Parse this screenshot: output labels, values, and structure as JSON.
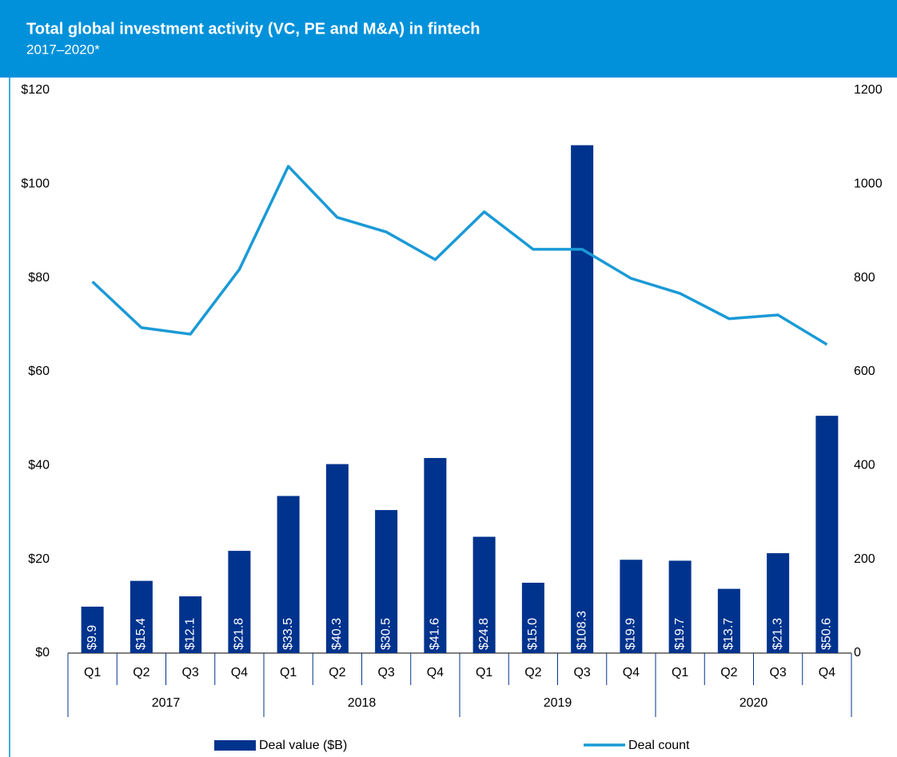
{
  "chart_data": {
    "type": "bar",
    "title": "Total global investment activity (VC, PE and M&A) in fintech",
    "subtitle": "2017–2020*",
    "categories": [
      "Q1",
      "Q2",
      "Q3",
      "Q4",
      "Q1",
      "Q2",
      "Q3",
      "Q4",
      "Q1",
      "Q2",
      "Q3",
      "Q4",
      "Q1",
      "Q2",
      "Q3",
      "Q4"
    ],
    "years": [
      "2017",
      "2018",
      "2019",
      "2020"
    ],
    "series": [
      {
        "name": "Deal value ($B)",
        "type": "bar",
        "color": "#00338d",
        "values": [
          9.9,
          15.4,
          12.1,
          21.8,
          33.5,
          40.3,
          30.5,
          41.6,
          24.8,
          15.0,
          108.3,
          19.9,
          19.7,
          13.7,
          21.3,
          50.6
        ],
        "value_labels": [
          "$9.9",
          "$15.4",
          "$12.1",
          "$21.8",
          "$33.5",
          "$40.3",
          "$30.5",
          "$41.6",
          "$24.8",
          "$15.0",
          "$108.3",
          "$19.9",
          "$19.7",
          "$13.7",
          "$21.3",
          "$50.6"
        ]
      },
      {
        "name": "Deal count",
        "type": "line",
        "axis": "y2",
        "color": "#1a9ad6",
        "values": [
          792,
          694,
          680,
          818,
          1038,
          929,
          898,
          839,
          941,
          861,
          861,
          799,
          767,
          713,
          721,
          658
        ]
      }
    ],
    "ylim": [
      0,
      120
    ],
    "yticks": [
      {
        "value": 0,
        "label": "$0"
      },
      {
        "value": 20,
        "label": "$20"
      },
      {
        "value": 40,
        "label": "$40"
      },
      {
        "value": 60,
        "label": "$60"
      },
      {
        "value": 80,
        "label": "$80"
      },
      {
        "value": 100,
        "label": "$100"
      },
      {
        "value": 120,
        "label": "$120"
      }
    ],
    "y2lim": [
      0,
      1200
    ],
    "y2ticks": [
      0,
      200,
      400,
      600,
      800,
      1000,
      1200
    ],
    "grid": false
  }
}
